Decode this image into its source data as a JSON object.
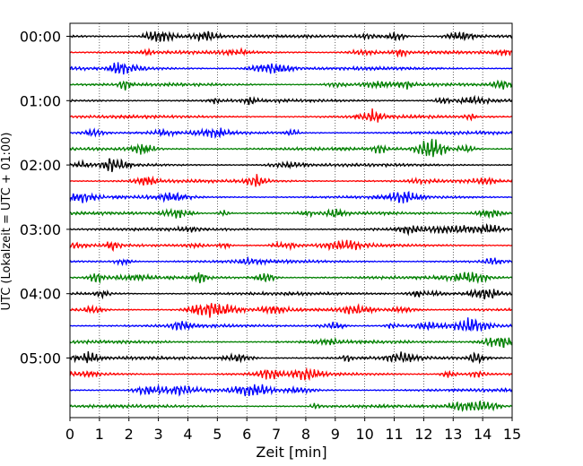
{
  "chart_data": {
    "type": "line",
    "title": "",
    "xlabel": "Zeit  [min]",
    "ylabel": "UTC (Lokalzeit = UTC + 01:00)",
    "xlim": [
      0,
      15
    ],
    "x_ticks": [
      "0",
      "1",
      "2",
      "3",
      "4",
      "5",
      "6",
      "7",
      "8",
      "9",
      "10",
      "11",
      "12",
      "13",
      "14",
      "15"
    ],
    "y_ticks": [
      "00:00",
      "01:00",
      "02:00",
      "03:00",
      "04:00",
      "05:00"
    ],
    "trace_interval_min": 15,
    "trace_count": 24,
    "trace_colors": [
      "#000000",
      "#ff0000",
      "#0000ff",
      "#008000"
    ],
    "grid": "vertical dotted lines at each minute",
    "legend": "none"
  }
}
